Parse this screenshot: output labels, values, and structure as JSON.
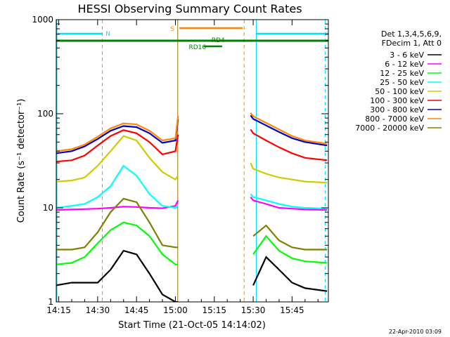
{
  "chart_data": {
    "type": "line",
    "title": "HESSI Observing Summary Count Rates",
    "xlabel": "Start Time (21-Oct-05 14:14:02)",
    "ylabel": "Count Rate (s⁻¹ detector⁻¹)",
    "xlim_minutes": [
      14.033,
      119
    ],
    "ylim": [
      1,
      1000
    ],
    "yscale": "log",
    "x_ticks": [
      {
        "min": 15,
        "label": "14:15"
      },
      {
        "min": 30,
        "label": "14:30"
      },
      {
        "min": 45,
        "label": "14:45"
      },
      {
        "min": 60,
        "label": "15:00"
      },
      {
        "min": 75,
        "label": "15:15"
      },
      {
        "min": 90,
        "label": "15:30"
      },
      {
        "min": 105,
        "label": "15:45"
      }
    ],
    "y_ticks": [
      {
        "v": 1,
        "label": "1"
      },
      {
        "v": 10,
        "label": "10"
      },
      {
        "v": 100,
        "label": "100"
      },
      {
        "v": 1000,
        "label": "1000"
      }
    ],
    "legend_header": [
      "Det 1,3,4,5,6,9,",
      "FDecim 1, Att 0"
    ],
    "legend_position": "right",
    "series": [
      {
        "name": "3 - 6 keV",
        "color": "#000000",
        "points": [
          [
            14.03,
            1.5
          ],
          [
            20,
            1.6
          ],
          [
            25,
            1.6
          ],
          [
            30,
            1.6
          ],
          [
            35,
            2.2
          ],
          [
            40,
            3.5
          ],
          [
            45,
            3.2
          ],
          [
            50,
            2
          ],
          [
            55,
            1.2
          ],
          [
            60,
            1
          ],
          [
            61,
            1
          ],
          [
            90,
            1.5
          ],
          [
            95,
            3
          ],
          [
            100,
            2.2
          ],
          [
            105,
            1.6
          ],
          [
            110,
            1.4
          ],
          [
            118.5,
            1.3
          ]
        ]
      },
      {
        "name": "6 - 12 keV",
        "color": "#ff00ff",
        "points": [
          [
            14.03,
            9.5
          ],
          [
            20,
            9.6
          ],
          [
            25,
            9.7
          ],
          [
            30,
            9.8
          ],
          [
            35,
            10
          ],
          [
            40,
            10.3
          ],
          [
            45,
            10.2
          ],
          [
            50,
            10
          ],
          [
            55,
            9.9
          ],
          [
            60,
            10.5
          ],
          [
            61,
            12
          ],
          [
            89,
            13
          ],
          [
            90,
            12
          ],
          [
            95,
            11
          ],
          [
            100,
            10
          ],
          [
            105,
            9.8
          ],
          [
            110,
            9.6
          ],
          [
            118.5,
            9.5
          ]
        ]
      },
      {
        "name": "12 - 25 keV",
        "color": "#00ff00",
        "points": [
          [
            14.03,
            2.5
          ],
          [
            20,
            2.6
          ],
          [
            25,
            3
          ],
          [
            30,
            4.2
          ],
          [
            35,
            5.8
          ],
          [
            40,
            7
          ],
          [
            45,
            6.5
          ],
          [
            50,
            5
          ],
          [
            55,
            3.2
          ],
          [
            60,
            2.5
          ],
          [
            61,
            2.5
          ],
          [
            90,
            3.2
          ],
          [
            95,
            5
          ],
          [
            100,
            3.5
          ],
          [
            105,
            2.9
          ],
          [
            110,
            2.7
          ],
          [
            118.5,
            2.6
          ]
        ]
      },
      {
        "name": "25 - 50 keV",
        "color": "#00ffff",
        "points": [
          [
            14.03,
            10
          ],
          [
            20,
            10.5
          ],
          [
            25,
            11
          ],
          [
            30,
            13
          ],
          [
            35,
            17
          ],
          [
            40,
            28
          ],
          [
            45,
            22
          ],
          [
            50,
            14
          ],
          [
            55,
            10.5
          ],
          [
            60,
            10
          ],
          [
            61,
            10.5
          ],
          [
            89,
            14
          ],
          [
            90,
            13
          ],
          [
            95,
            12
          ],
          [
            100,
            11
          ],
          [
            105,
            10.3
          ],
          [
            110,
            10
          ],
          [
            118.5,
            9.8
          ]
        ]
      },
      {
        "name": "50 - 100 keV",
        "color": "#cccc00",
        "points": [
          [
            14.03,
            19
          ],
          [
            20,
            19.5
          ],
          [
            25,
            21
          ],
          [
            30,
            28
          ],
          [
            35,
            40
          ],
          [
            40,
            58
          ],
          [
            45,
            52
          ],
          [
            50,
            34
          ],
          [
            55,
            24
          ],
          [
            60,
            20
          ],
          [
            61,
            22
          ],
          [
            89,
            30
          ],
          [
            90,
            26
          ],
          [
            95,
            23
          ],
          [
            100,
            21
          ],
          [
            105,
            20
          ],
          [
            110,
            19
          ],
          [
            118.5,
            18.5
          ]
        ]
      },
      {
        "name": "100 - 300 keV",
        "color": "#ff0000",
        "points": [
          [
            14.03,
            31
          ],
          [
            20,
            32
          ],
          [
            25,
            36
          ],
          [
            30,
            46
          ],
          [
            35,
            58
          ],
          [
            40,
            67
          ],
          [
            45,
            62
          ],
          [
            50,
            50
          ],
          [
            55,
            37
          ],
          [
            60,
            40
          ],
          [
            61,
            60
          ],
          [
            89,
            68
          ],
          [
            90,
            62
          ],
          [
            95,
            52
          ],
          [
            100,
            44
          ],
          [
            105,
            38
          ],
          [
            110,
            34
          ],
          [
            118.5,
            32
          ]
        ]
      },
      {
        "name": "300 - 800 keV",
        "color": "#0000cc",
        "points": [
          [
            14.03,
            38
          ],
          [
            20,
            40
          ],
          [
            25,
            45
          ],
          [
            30,
            54
          ],
          [
            35,
            66
          ],
          [
            40,
            74
          ],
          [
            45,
            72
          ],
          [
            50,
            62
          ],
          [
            55,
            49
          ],
          [
            60,
            52
          ],
          [
            61,
            88
          ],
          [
            89,
            96
          ],
          [
            90,
            88
          ],
          [
            95,
            75
          ],
          [
            100,
            64
          ],
          [
            105,
            55
          ],
          [
            110,
            50
          ],
          [
            118.5,
            46
          ]
        ]
      },
      {
        "name": "800 - 7000 keV",
        "color": "#ff8800",
        "points": [
          [
            14.03,
            40
          ],
          [
            20,
            42
          ],
          [
            25,
            47
          ],
          [
            30,
            57
          ],
          [
            35,
            70
          ],
          [
            40,
            79
          ],
          [
            45,
            77
          ],
          [
            50,
            66
          ],
          [
            55,
            52
          ],
          [
            60,
            55
          ],
          [
            61,
            95
          ],
          [
            89,
            102
          ],
          [
            90,
            94
          ],
          [
            95,
            80
          ],
          [
            100,
            68
          ],
          [
            105,
            58
          ],
          [
            110,
            52
          ],
          [
            118.5,
            48
          ]
        ]
      },
      {
        "name": "7000 - 20000 keV",
        "color": "#808000",
        "points": [
          [
            14.03,
            3.6
          ],
          [
            20,
            3.6
          ],
          [
            25,
            3.8
          ],
          [
            30,
            5.5
          ],
          [
            35,
            9
          ],
          [
            40,
            12.5
          ],
          [
            45,
            11.5
          ],
          [
            50,
            7
          ],
          [
            55,
            4
          ],
          [
            60,
            3.8
          ],
          [
            61,
            3.8
          ],
          [
            90,
            5
          ],
          [
            95,
            6.5
          ],
          [
            100,
            4.5
          ],
          [
            105,
            3.8
          ],
          [
            110,
            3.6
          ],
          [
            118.5,
            3.6
          ]
        ]
      }
    ],
    "annotations": {
      "N": "N",
      "S": "S",
      "RD4": "RD4",
      "RD16": "RD16"
    },
    "timestamp": "22-Apr-2010 03:09"
  }
}
